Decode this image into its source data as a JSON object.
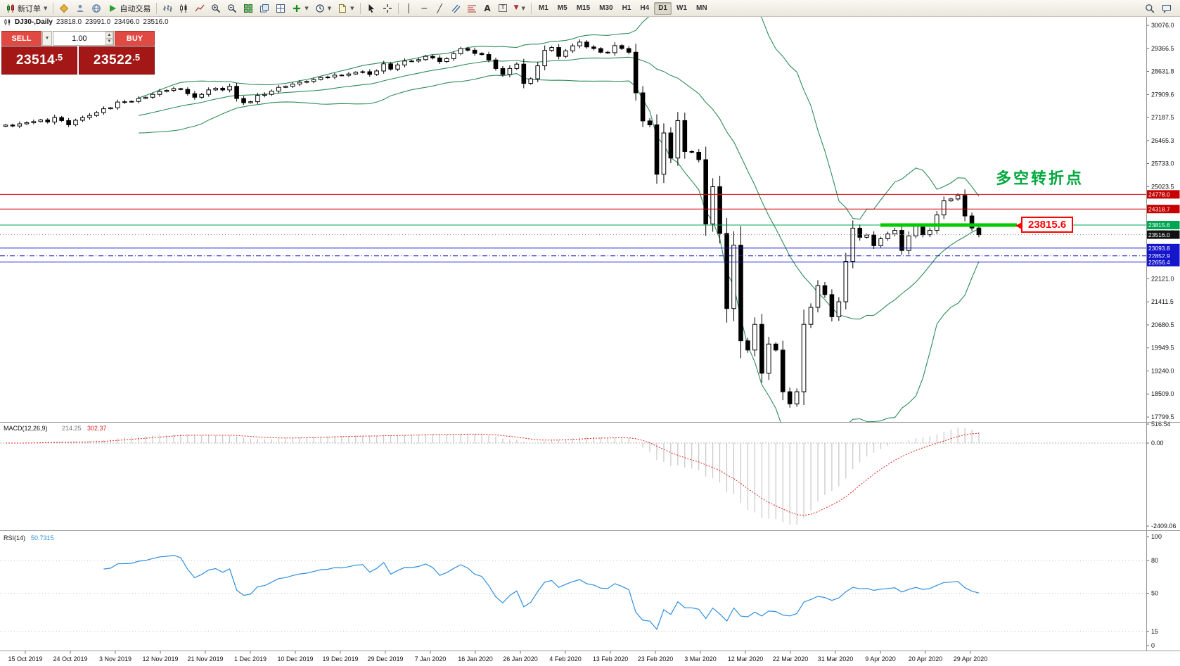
{
  "toolbar": {
    "new_order_label": "新订单",
    "autotrade_label": "自动交易",
    "timeframes": [
      "M1",
      "M5",
      "M15",
      "M30",
      "H1",
      "H4",
      "D1",
      "W1",
      "MN"
    ],
    "active_timeframe": "D1"
  },
  "chart": {
    "title_symbol": "DJ30-,Daily",
    "ohlc": {
      "open": "23818.0",
      "high": "23991.0",
      "low": "23496.0",
      "close": "23516.0"
    }
  },
  "trade_panel": {
    "sell_label": "SELL",
    "buy_label": "BUY",
    "lot_value": "1.00",
    "sell_price": "23514.5",
    "buy_price": "23522.5",
    "sell_main": "23514",
    "sell_frac": ".5",
    "buy_main": "23522",
    "buy_frac": ".5"
  },
  "annotations": {
    "turning_point_text": "多空转折点",
    "turning_point_color": "#00a83d",
    "price_callout": "23815.6",
    "callout_color": "#ff0000",
    "highlight_color": "#00cc00",
    "highlight_price": 23815.6
  },
  "price_lines": [
    {
      "label": "24778.0",
      "price": 24778.0,
      "line_color": "#d40000",
      "tag_color": "#c40000",
      "style": "solid"
    },
    {
      "label": "24318.7",
      "price": 24318.7,
      "line_color": "#d40000",
      "tag_color": "#c40000",
      "style": "solid"
    },
    {
      "label": "23815.6",
      "price": 23815.6,
      "line_color": "#00a651",
      "tag_color": "#00a651",
      "style": "solid"
    },
    {
      "label": "23516.0",
      "price": 23516.0,
      "line_color": "#888888",
      "tag_color": "#111111",
      "style": "dotted"
    },
    {
      "label": "23093.8",
      "price": 23093.8,
      "line_color": "#1515cc",
      "tag_color": "#1515cc",
      "style": "solid"
    },
    {
      "label": "22852.9",
      "price": 22852.9,
      "line_color": "#1515cc",
      "tag_color": "#1515cc",
      "style": "dashdot"
    },
    {
      "label": "22656.4",
      "price": 22656.4,
      "line_color": "#1515cc",
      "tag_color": "#1515cc",
      "style": "solid"
    }
  ],
  "chart_data": {
    "type": "candlestick",
    "symbol": "DJ30-",
    "timeframe": "Daily",
    "y_axis_labels": [
      "30076.0",
      "29366.5",
      "28631.8",
      "27909.6",
      "27187.5",
      "26465.3",
      "25733.0",
      "25023.5",
      "24298.9",
      "23576.7",
      "22854.6",
      "22121.0",
      "21411.5",
      "20680.5",
      "19949.5",
      "19240.0",
      "18509.0",
      "17799.5"
    ],
    "x_axis_labels": [
      "15 Oct 2019",
      "24 Oct 2019",
      "3 Nov 2019",
      "12 Nov 2019",
      "21 Nov 2019",
      "1 Dec 2019",
      "10 Dec 2019",
      "19 Dec 2019",
      "29 Dec 2019",
      "7 Jan 2020",
      "16 Jan 2020",
      "26 Jan 2020",
      "4 Feb 2020",
      "13 Feb 2020",
      "23 Feb 2020",
      "3 Mar 2020",
      "12 Mar 2020",
      "22 Mar 2020",
      "31 Mar 2020",
      "9 Apr 2020",
      "20 Apr 2020",
      "29 Apr 2020"
    ],
    "closes": [
      26950,
      26921,
      26990,
      27025,
      27061,
      27110,
      27046,
      27186,
      27091,
      26958,
      27101,
      27186,
      27250,
      27341,
      27462,
      27493,
      27671,
      27681,
      27691,
      27783,
      27821,
      27911,
      28004,
      28036,
      28091,
      28066,
      27934,
      27821,
      27911,
      28052,
      28102,
      28051,
      28164,
      27783,
      27650,
      27682,
      27882,
      27911,
      28015,
      28132,
      28165,
      28235,
      28290,
      28318,
      28377,
      28440,
      28455,
      28515,
      28511,
      28551,
      28605,
      28621,
      28538,
      28645,
      28869,
      28703,
      28834,
      28957,
      28956,
      29001,
      29104,
      29054,
      28940,
      29030,
      29186,
      29348,
      29297,
      29196,
      29160,
      28990,
      28722,
      28535,
      28723,
      28859,
      28256,
      28400,
      28807,
      29290,
      29380,
      29103,
      29277,
      29433,
      29551,
      29398,
      29348,
      29232,
      29219,
      29440,
      29348,
      29232,
      27960,
      27081,
      26957,
      25409,
      26703,
      25917,
      27091,
      26121,
      26098,
      25865,
      23851,
      25018,
      23553,
      21200,
      23185,
      20188,
      19899,
      20704,
      19173,
      20087,
      19898,
      18592,
      18214,
      18592,
      20705,
      21237,
      21917,
      21637,
      20943,
      21413,
      22680,
      23719,
      23433,
      23504,
      23170,
      23387,
      23537,
      23650,
      23019,
      23475,
      23776,
      23515,
      23650,
      24133,
      24575,
      24634,
      24746,
      24102,
      23724,
      23516
    ],
    "style": {
      "candle_up": "#ffffff",
      "candle_down": "#000000",
      "band_color": "#2e8b57"
    },
    "indicators": {
      "macd": {
        "label": "MACD(12,26,9)",
        "value_main": "214.25",
        "value_signal": "302.37",
        "axis_labels": [
          "516.54",
          "0.00",
          "-2409.06"
        ],
        "hist_color": "#bcbcbc",
        "signal_color": "#e02020"
      },
      "rsi": {
        "label": "RSI(14)",
        "value": "50.7315",
        "axis_labels": [
          "100",
          "80",
          "50",
          "15",
          "0"
        ],
        "levels": [
          80,
          50,
          15
        ],
        "line_color": "#2f8fde"
      }
    }
  }
}
